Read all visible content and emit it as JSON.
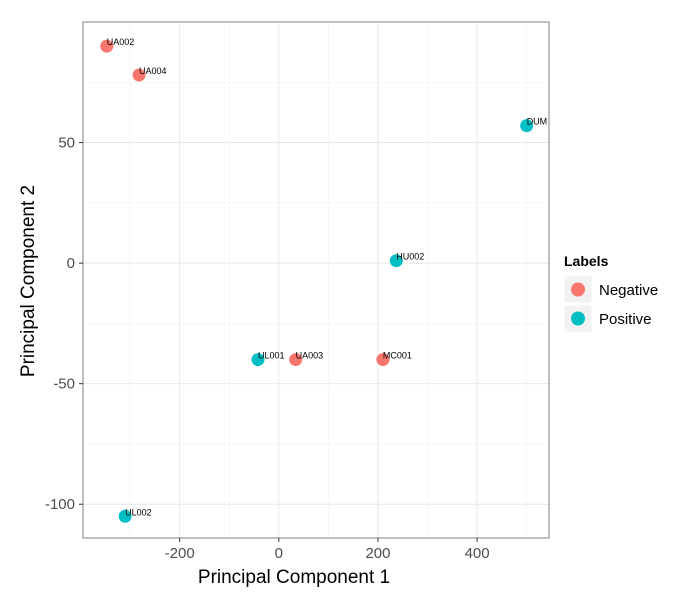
{
  "chart_data": {
    "type": "scatter",
    "title": "",
    "xlabel": "Principal Component 1",
    "ylabel": "Principal Component 2",
    "xlim": [
      -395,
      545
    ],
    "ylim": [
      -114,
      100
    ],
    "x_ticks": [
      -200,
      0,
      200,
      400
    ],
    "y_ticks": [
      -100,
      -50,
      0,
      50
    ],
    "grid": true,
    "legend": {
      "title": "Labels",
      "position": "right",
      "entries": [
        {
          "name": "Negative",
          "color": "#F8766D"
        },
        {
          "name": "Positive",
          "color": "#00BFC4"
        }
      ]
    },
    "points": [
      {
        "label": "UA002",
        "x": -347,
        "y": 90,
        "group": "Negative"
      },
      {
        "label": "UA004",
        "x": -282,
        "y": 78,
        "group": "Negative"
      },
      {
        "label": "DUM",
        "x": 500,
        "y": 57,
        "group": "Positive"
      },
      {
        "label": "HU002",
        "x": 237,
        "y": 1,
        "group": "Positive"
      },
      {
        "label": "UL001",
        "x": -42,
        "y": -40,
        "group": "Positive"
      },
      {
        "label": "UA003",
        "x": 34,
        "y": -40,
        "group": "Negative"
      },
      {
        "label": "MC001",
        "x": 210,
        "y": -40,
        "group": "Negative"
      },
      {
        "label": "UL002",
        "x": -310,
        "y": -105,
        "group": "Positive"
      }
    ]
  }
}
